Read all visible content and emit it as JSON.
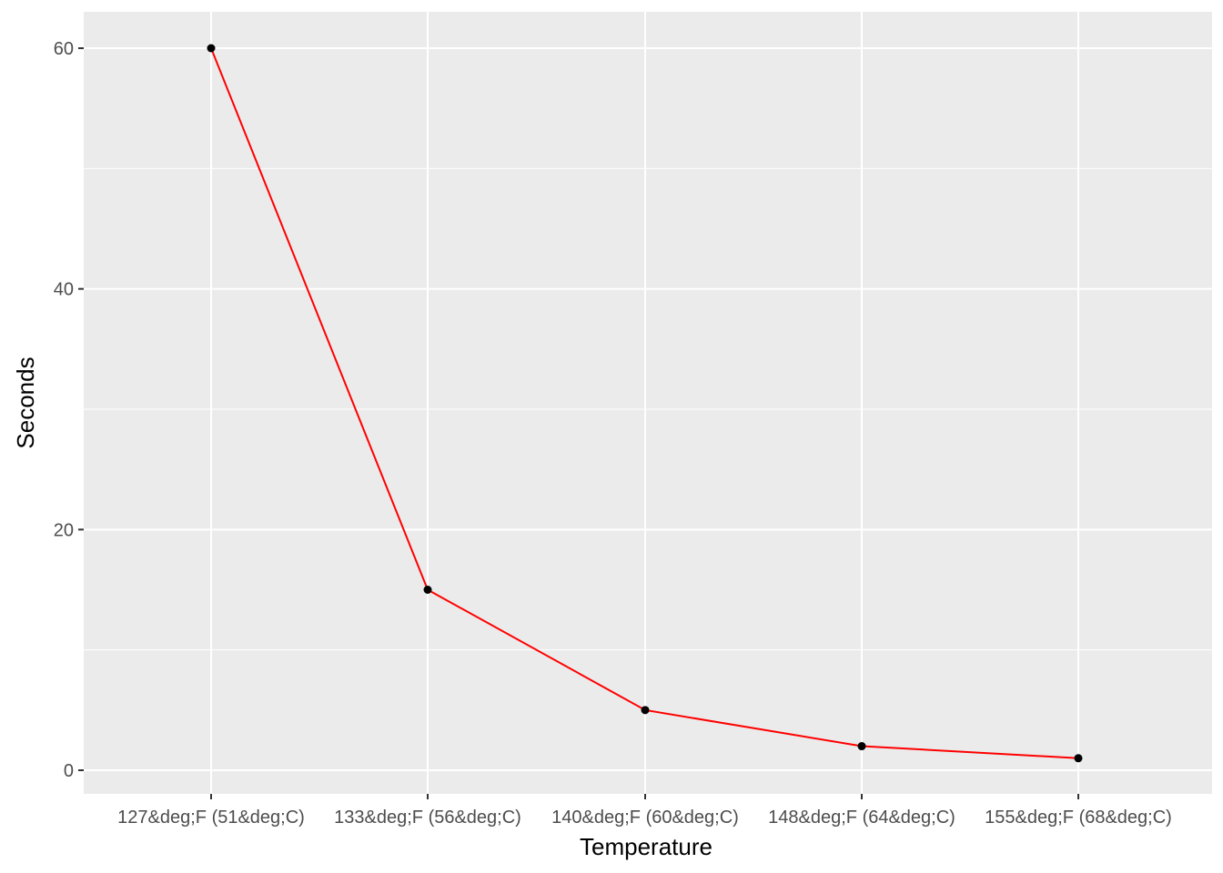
{
  "chart_data": {
    "type": "line",
    "title": "",
    "xlabel": "Temperature",
    "ylabel": "Seconds",
    "categories": [
      "127&deg;F (51&deg;C)",
      "133&deg;F (56&deg;C)",
      "140&deg;F (60&deg;C)",
      "148&deg;F (64&deg;C)",
      "155&deg;F (68&deg;C)"
    ],
    "values": [
      60,
      15,
      5,
      2,
      1
    ],
    "ylim": [
      -2,
      63
    ],
    "y_ticks": [
      0,
      20,
      40,
      60
    ],
    "grid": true,
    "legend": "none",
    "colors": {
      "line": "#ff0000",
      "point": "#000000",
      "panel": "#ebebeb",
      "grid": "#ffffff",
      "tick_text": "#4d4d4d"
    }
  }
}
